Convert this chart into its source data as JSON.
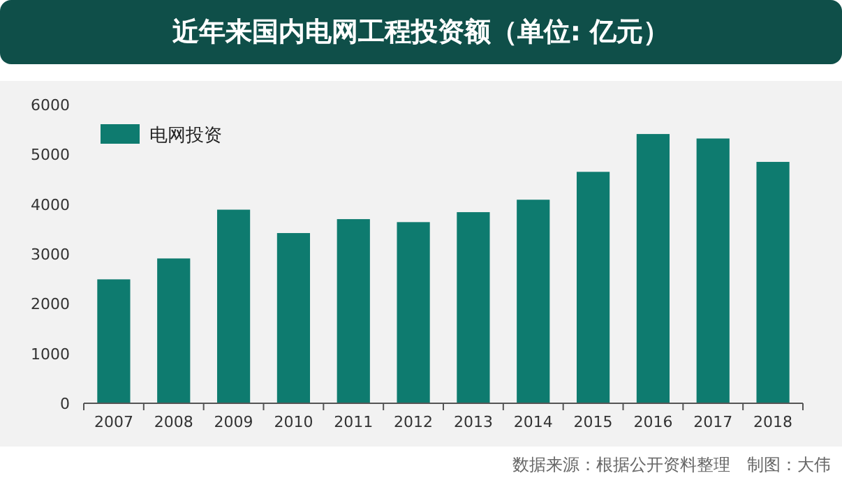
{
  "chart_data": {
    "type": "bar",
    "title": "近年来国内电网工程投资额（单位: 亿元）",
    "categories": [
      "2007",
      "2008",
      "2009",
      "2010",
      "2011",
      "2012",
      "2013",
      "2014",
      "2015",
      "2016",
      "2017",
      "2018"
    ],
    "series": [
      {
        "name": "电网投资",
        "color": "#0e7b6f",
        "values": [
          2490,
          2910,
          3890,
          3420,
          3700,
          3640,
          3840,
          4090,
          4650,
          5410,
          5320,
          4850
        ]
      }
    ],
    "ylim": [
      0,
      6000
    ],
    "yticks": [
      0,
      1000,
      2000,
      3000,
      4000,
      5000,
      6000
    ],
    "grid": false,
    "legend": "top left",
    "annotations": [
      "数据来源：根据公开资料整理　制图：大伟"
    ]
  }
}
